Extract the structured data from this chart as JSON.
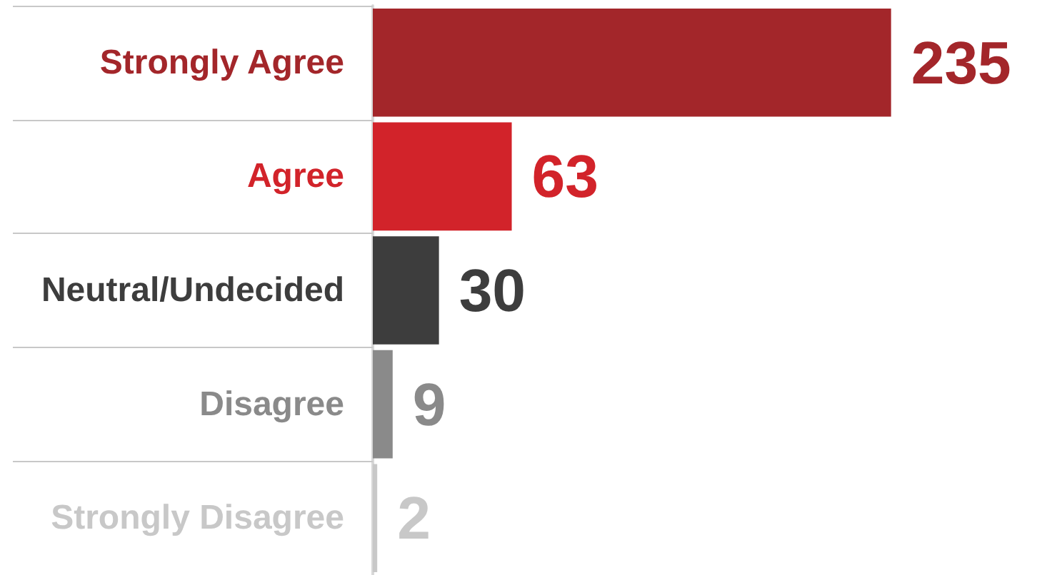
{
  "chart_data": {
    "type": "bar",
    "orientation": "horizontal",
    "categories": [
      "Strongly Agree",
      "Agree",
      "Neutral/Undecided",
      "Disagree",
      "Strongly Disagree"
    ],
    "values": [
      235,
      63,
      30,
      9,
      2
    ],
    "colors": [
      "#a3262a",
      "#d2232a",
      "#3d3d3d",
      "#8a8a8a",
      "#c8c8c8"
    ],
    "data_labels": true
  }
}
